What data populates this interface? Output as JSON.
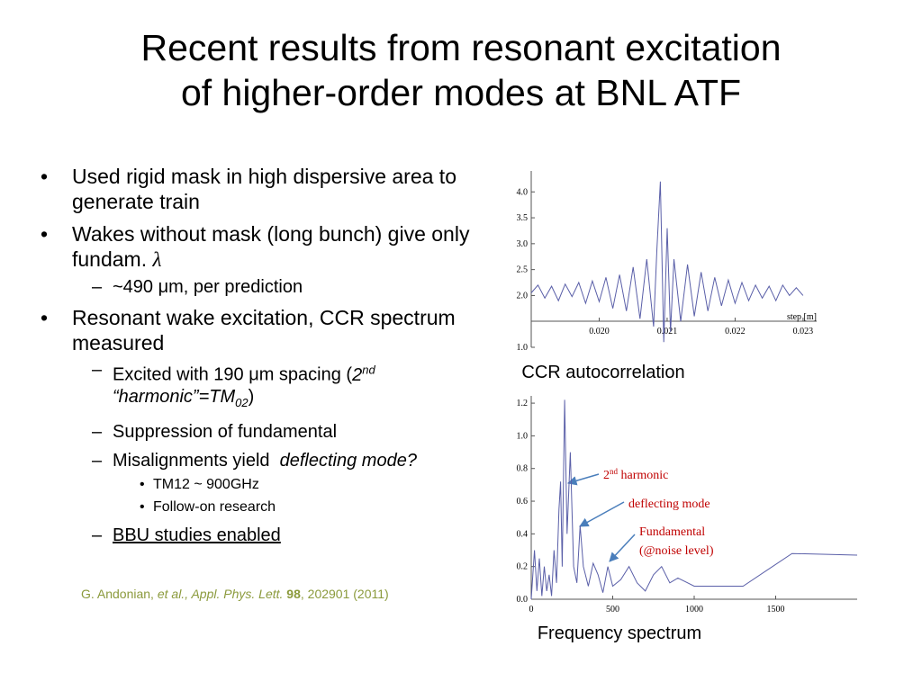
{
  "title": [
    "Recent results from resonant excitation",
    "of higher-order modes at BNL ATF"
  ],
  "bullets": [
    {
      "text": "Used rigid mask in high dispersive area to generate train"
    },
    {
      "text": "Wakes without mask (long bunch) give only fundam. ",
      "symbol": "λ",
      "children": [
        {
          "text": "~490 μm, per prediction"
        }
      ]
    },
    {
      "text": "Resonant wake excitation, CCR spectrum measured",
      "children": [
        {
          "parts": [
            "Excited with 190 μm spacing (",
            "2",
            "nd",
            " “harmonic”=TM",
            "02",
            ")"
          ]
        },
        {
          "text": "Suppression of fundamental"
        },
        {
          "parts": [
            "Misalignments yield  ",
            "deflecting mode?"
          ],
          "children": [
            {
              "text": "TM12 ~ 900GHz"
            },
            {
              "text": "Follow-on research"
            }
          ]
        },
        {
          "text": "BBU studies enabled"
        }
      ]
    }
  ],
  "citation": [
    "G. Andonian, ",
    "et al., Appl. Phys. Lett. ",
    "98",
    ", 202901 (2011)"
  ],
  "charts": [
    {
      "type": "line",
      "caption": "CCR autocorrelation",
      "x_label": "step [m]",
      "color": "#5a5fa8",
      "x": [
        0.019,
        0.0191,
        0.0192,
        0.0193,
        0.0194,
        0.0195,
        0.0196,
        0.0197,
        0.0198,
        0.0199,
        0.02,
        0.0201,
        0.0202,
        0.0203,
        0.0204,
        0.0205,
        0.0206,
        0.0207,
        0.0208,
        0.02085,
        0.0209,
        0.02095,
        0.021,
        0.02105,
        0.0211,
        0.0212,
        0.0213,
        0.0214,
        0.0215,
        0.0216,
        0.0217,
        0.0218,
        0.0219,
        0.022,
        0.0221,
        0.0222,
        0.0223,
        0.0224,
        0.0225,
        0.0226,
        0.0227,
        0.0228,
        0.0229,
        0.023
      ],
      "values": [
        2.05,
        2.2,
        1.95,
        2.18,
        1.9,
        2.22,
        1.98,
        2.25,
        1.85,
        2.28,
        1.88,
        2.35,
        1.75,
        2.4,
        1.7,
        2.55,
        1.55,
        2.7,
        1.4,
        2.9,
        4.2,
        1.1,
        3.3,
        1.3,
        2.7,
        1.5,
        2.6,
        1.6,
        2.45,
        1.7,
        2.35,
        1.8,
        2.3,
        1.85,
        2.25,
        1.9,
        2.2,
        1.95,
        2.18,
        1.9,
        2.2,
        2.0,
        2.15,
        2.0
      ],
      "xlim": [
        0.019,
        0.0232
      ],
      "ylim": [
        1.0,
        4.3
      ],
      "xticks": [
        {
          "value": 0.02,
          "label": "0.020"
        },
        0.021,
        0.022,
        0.023
      ],
      "yticks": [
        {
          "value": 1,
          "label": "1.0"
        },
        {
          "value": 2,
          "label": "2.0"
        },
        2.5,
        {
          "value": 3,
          "label": "3.0"
        },
        3.5,
        {
          "value": 4,
          "label": "4.0"
        }
      ]
    },
    {
      "type": "line",
      "caption": "Frequency spectrum",
      "color": "#5a5fa8",
      "x": [
        0,
        20,
        35,
        50,
        65,
        80,
        95,
        110,
        125,
        140,
        155,
        170,
        180,
        190,
        205,
        220,
        240,
        260,
        280,
        300,
        320,
        350,
        380,
        410,
        440,
        470,
        500,
        550,
        600,
        650,
        700,
        750,
        800,
        850,
        900,
        1000,
        1100,
        1200,
        1300,
        1450,
        1600,
        2000
      ],
      "values": [
        0.0,
        0.3,
        0.05,
        0.25,
        0.02,
        0.2,
        0.05,
        0.15,
        0.02,
        0.3,
        0.1,
        0.55,
        0.72,
        0.2,
        1.22,
        0.4,
        0.9,
        0.2,
        0.1,
        0.45,
        0.2,
        0.08,
        0.22,
        0.15,
        0.04,
        0.2,
        0.08,
        0.12,
        0.2,
        0.1,
        0.05,
        0.15,
        0.2,
        0.1,
        0.13,
        0.08,
        0.08,
        0.08,
        0.08,
        0.18,
        0.28,
        0.27
      ],
      "xlim": [
        0,
        2000
      ],
      "ylim": [
        0,
        1.25
      ],
      "xticks": [
        0,
        500,
        1000,
        1500
      ],
      "yticks": [
        {
          "value": 0,
          "label": "0.0"
        },
        0.2,
        0.4,
        0.6,
        0.8,
        {
          "value": 1,
          "label": "1.0"
        },
        1.2
      ],
      "annotations": [
        [
          "2",
          "nd",
          " harmonic"
        ],
        [
          "deflecting mode"
        ],
        [
          "Fundamental"
        ],
        [
          "(@noise level)"
        ]
      ]
    }
  ]
}
